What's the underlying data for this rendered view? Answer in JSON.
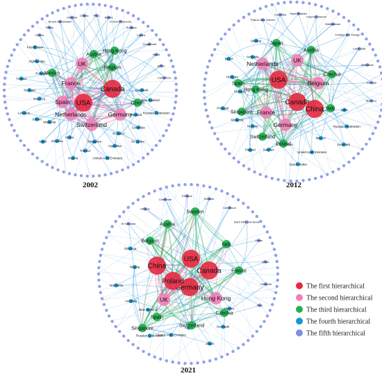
{
  "colors": {
    "level1": "#e8283f",
    "level2": "#f27fb6",
    "level3": "#21b152",
    "level4": "#1597d6",
    "level5": "#7b8fe3",
    "edge_blue": "#2b93d6",
    "edge_pink": "#f06aa8",
    "edge_green": "#1fae4f"
  },
  "legend": [
    {
      "label": "The first hierarchical",
      "level": 1
    },
    {
      "label": "The second hierarchical",
      "level": 2
    },
    {
      "label": "The third hierarchical",
      "level": 3
    },
    {
      "label": "The fourth hierarchical",
      "level": 4
    },
    {
      "label": "The fifth hierarchical",
      "level": 5
    }
  ],
  "networks": [
    {
      "year": "2002",
      "nodes": [
        {
          "label": "USA",
          "level": 1
        },
        {
          "label": "Canada",
          "level": 1
        },
        {
          "label": "UK",
          "level": 2
        },
        {
          "label": "France",
          "level": 2
        },
        {
          "label": "Spain",
          "level": 2
        },
        {
          "label": "Netherlands",
          "level": 2
        },
        {
          "label": "Switzerland",
          "level": 2
        },
        {
          "label": "Germany",
          "level": 2
        },
        {
          "label": "Belgium",
          "level": 3
        },
        {
          "label": "Hong Kong",
          "level": 3
        },
        {
          "label": "Mexico",
          "level": 3
        },
        {
          "label": "Czech",
          "level": 3
        },
        {
          "label": "Austria",
          "level": 3
        },
        {
          "label": "Denmark",
          "level": 4
        },
        {
          "label": "New Zealand",
          "level": 4
        },
        {
          "label": "Russian Federation",
          "level": 4
        },
        {
          "label": "Thailand",
          "level": 4
        },
        {
          "label": "Colombia",
          "level": 4
        },
        {
          "label": "Sri Lanka",
          "level": 4
        },
        {
          "label": "Ecuador",
          "level": 4
        },
        {
          "label": "Argentina",
          "level": 4
        },
        {
          "label": "United Arab Emirates",
          "level": 4
        },
        {
          "label": "Singapore",
          "level": 4
        },
        {
          "label": "Poland",
          "level": 4
        },
        {
          "label": "Nigeria",
          "level": 4
        },
        {
          "label": "Korea",
          "level": 4
        },
        {
          "label": "Slovakia",
          "level": 4
        },
        {
          "label": "Israel",
          "level": 4
        },
        {
          "label": "Malaysia",
          "level": 4
        },
        {
          "label": "Jordan",
          "level": 4
        },
        {
          "label": "Lebanon",
          "level": 4
        },
        {
          "label": "Morocco",
          "level": 4
        },
        {
          "label": "Senegal",
          "level": 4
        },
        {
          "label": "Tunisia",
          "level": 4
        },
        {
          "label": "Portugal",
          "level": 4
        },
        {
          "label": "Afghanistan",
          "level": 4
        },
        {
          "label": "Kazakhstan",
          "level": 4
        },
        {
          "label": "Ghana",
          "level": 5
        },
        {
          "label": "Turkey",
          "level": 5
        },
        {
          "label": "Brunei Darussalam",
          "level": 5
        },
        {
          "label": "Gibraltar",
          "level": 5
        },
        {
          "label": "Croatia",
          "level": 5
        },
        {
          "label": "Peru",
          "level": 5
        },
        {
          "label": "Bolivia",
          "level": 5
        },
        {
          "label": "French Polynesia",
          "level": 5
        },
        {
          "label": "Hungary",
          "level": 5
        },
        {
          "label": "Cyprus",
          "level": 5
        },
        {
          "label": "Guatemala",
          "level": 5
        },
        {
          "label": "Malta",
          "level": 5
        },
        {
          "label": "Belize",
          "level": 5
        },
        {
          "label": "Cameroon",
          "level": 5
        }
      ]
    },
    {
      "year": "2012",
      "nodes": [
        {
          "label": "USA",
          "level": 1
        },
        {
          "label": "Canada",
          "level": 1
        },
        {
          "label": "China",
          "level": 1
        },
        {
          "label": "UK",
          "level": 2
        },
        {
          "label": "Netherlands",
          "level": 2
        },
        {
          "label": "Germany",
          "level": 2
        },
        {
          "label": "France",
          "level": 2
        },
        {
          "label": "Belgium",
          "level": 2
        },
        {
          "label": "Japan",
          "level": 3
        },
        {
          "label": "Austria",
          "level": 3
        },
        {
          "label": "Spain",
          "level": 3
        },
        {
          "label": "Hong Kong",
          "level": 3
        },
        {
          "label": "Italy",
          "level": 3
        },
        {
          "label": "Czechia",
          "level": 3
        },
        {
          "label": "Switzerland",
          "level": 3
        },
        {
          "label": "Singapore",
          "level": 3
        },
        {
          "label": "Poland",
          "level": 3
        },
        {
          "label": "India",
          "level": 4
        },
        {
          "label": "Russian Federation",
          "level": 4
        },
        {
          "label": "Denmark",
          "level": 4
        },
        {
          "label": "Mexico",
          "level": 4
        },
        {
          "label": "United Arab Emirates",
          "level": 4
        },
        {
          "label": "Saudi Arabia",
          "level": 4
        },
        {
          "label": "South Africa",
          "level": 4
        },
        {
          "label": "Sweden",
          "level": 4
        },
        {
          "label": "Finland",
          "level": 4
        },
        {
          "label": "Norway",
          "level": 4
        },
        {
          "label": "Malaysia",
          "level": 4
        },
        {
          "label": "Portugal",
          "level": 4
        },
        {
          "label": "Slovakia",
          "level": 4
        },
        {
          "label": "Hungary",
          "level": 4
        },
        {
          "label": "Brazil",
          "level": 4
        },
        {
          "label": "Australia",
          "level": 4
        },
        {
          "label": "Ukraine",
          "level": 4
        },
        {
          "label": "Papua New Guinea",
          "level": 5
        },
        {
          "label": "Colombia",
          "level": 5
        },
        {
          "label": "Saint Maarten",
          "level": 5
        },
        {
          "label": "Cayman Islands",
          "level": 5
        },
        {
          "label": "Madagascar",
          "level": 5
        },
        {
          "label": "Trinidad and Tobago",
          "level": 5
        },
        {
          "label": "Cambodia",
          "level": 5
        },
        {
          "label": "Zimbabwe",
          "level": 5
        },
        {
          "label": "Georgia",
          "level": 5
        },
        {
          "label": "Morocco",
          "level": 5
        }
      ]
    },
    {
      "year": "2021",
      "nodes": [
        {
          "label": "USA",
          "level": 1
        },
        {
          "label": "Germany",
          "level": 1
        },
        {
          "label": "Canada",
          "level": 1
        },
        {
          "label": "China",
          "level": 1
        },
        {
          "label": "Poland",
          "level": 1
        },
        {
          "label": "UK",
          "level": 2
        },
        {
          "label": "Hong Kong",
          "level": 2
        },
        {
          "label": "Belgium",
          "level": 3
        },
        {
          "label": "Austria",
          "level": 3
        },
        {
          "label": "Italy",
          "level": 3
        },
        {
          "label": "France",
          "level": 3
        },
        {
          "label": "Spain",
          "level": 3
        },
        {
          "label": "Switzerland",
          "level": 3
        },
        {
          "label": "Czechia",
          "level": 3
        },
        {
          "label": "Singapore",
          "level": 3
        },
        {
          "label": "Sweden",
          "level": 3
        },
        {
          "label": "Mexico",
          "level": 4
        },
        {
          "label": "Denmark",
          "level": 4
        },
        {
          "label": "Japan",
          "level": 4
        },
        {
          "label": "Korea",
          "level": 4
        },
        {
          "label": "United Arab Emirates",
          "level": 4
        },
        {
          "label": "Russian Federation",
          "level": 4
        },
        {
          "label": "New Zealand",
          "level": 4
        },
        {
          "label": "Australia",
          "level": 4
        },
        {
          "label": "Indonesia",
          "level": 4
        },
        {
          "label": "Nigeria",
          "level": 4
        },
        {
          "label": "Slovenia",
          "level": 4
        },
        {
          "label": "El Salvador",
          "level": 5
        },
        {
          "label": "Ukraine",
          "level": 5
        },
        {
          "label": "Cambodia",
          "level": 5
        },
        {
          "label": "Ethiopia",
          "level": 5
        },
        {
          "label": "Ecuador",
          "level": 5
        },
        {
          "label": "Cameroon",
          "level": 5
        },
        {
          "label": "Saint Kitts and Nevis",
          "level": 5
        },
        {
          "label": "Oman",
          "level": 5
        },
        {
          "label": "Qatar",
          "level": 5
        },
        {
          "label": "Lithuania",
          "level": 5
        },
        {
          "label": "Peru",
          "level": 5
        }
      ]
    }
  ]
}
